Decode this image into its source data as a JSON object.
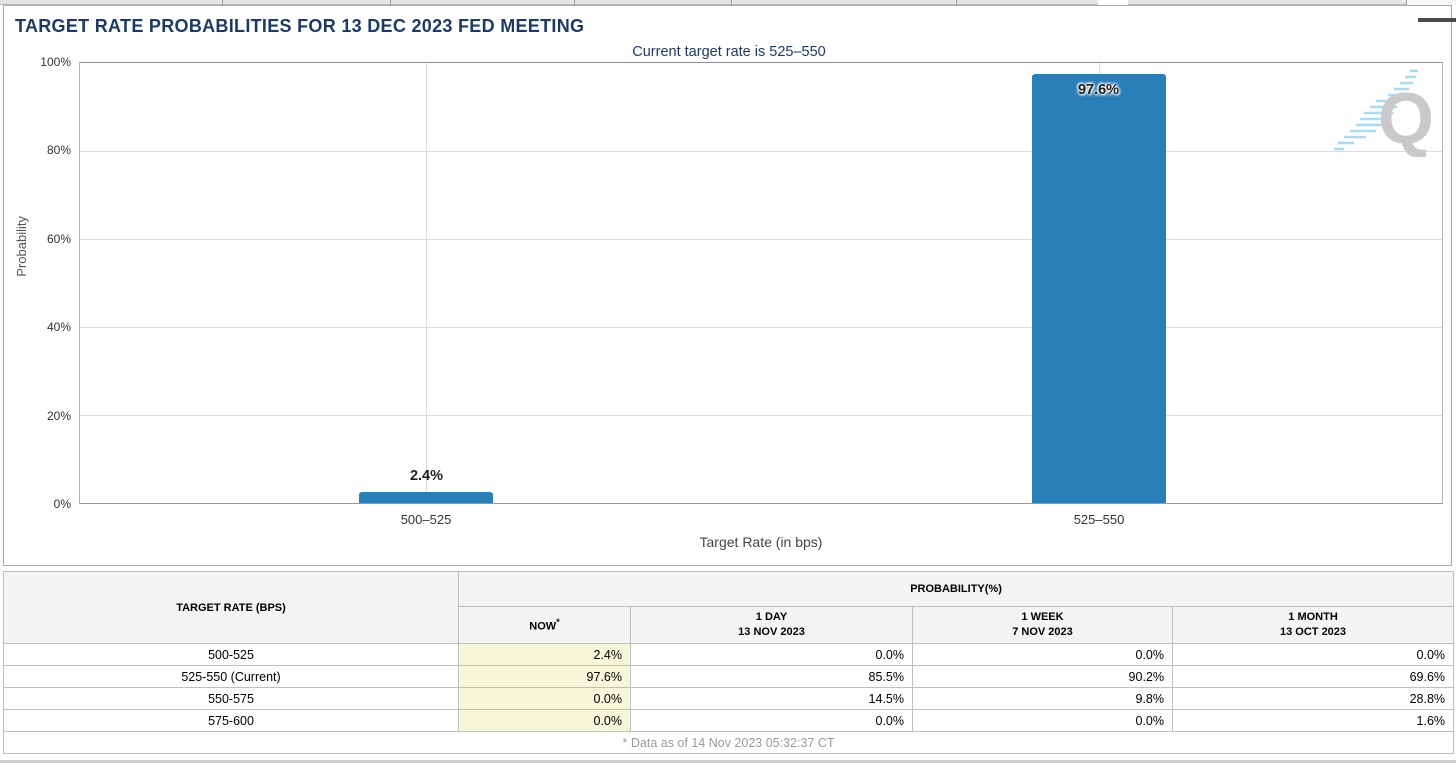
{
  "chart_data": {
    "type": "bar",
    "title": "TARGET RATE PROBABILITIES FOR 13 DEC 2023 FED MEETING",
    "subtitle": "Current target rate is 525–550",
    "categories": [
      "500–525",
      "525–550"
    ],
    "values": [
      2.4,
      97.6
    ],
    "bar_labels": [
      "2.4%",
      "97.6%"
    ],
    "xlabel": "Target Rate (in bps)",
    "ylabel": "Probability",
    "ylim": [
      0,
      100
    ],
    "ytick_labels": [
      "0%",
      "20%",
      "40%",
      "60%",
      "80%",
      "100%"
    ],
    "grid": true,
    "legend": false,
    "bar_color": "#2980b9"
  },
  "panel": {
    "watermark_letter": "Q"
  },
  "table": {
    "corner_header": "TARGET RATE (BPS)",
    "group_header": "PROBABILITY(%)",
    "now_header": {
      "label": "NOW",
      "asterisk": "*"
    },
    "col_headers": [
      {
        "line1": "1 DAY",
        "line2": "13 NOV 2023"
      },
      {
        "line1": "1 WEEK",
        "line2": "7 NOV 2023"
      },
      {
        "line1": "1 MONTH",
        "line2": "13 OCT 2023"
      }
    ],
    "rows": [
      {
        "rate": "500-525",
        "now": "2.4%",
        "day": "0.0%",
        "week": "0.0%",
        "month": "0.0%"
      },
      {
        "rate": "525-550 (Current)",
        "now": "97.6%",
        "day": "85.5%",
        "week": "90.2%",
        "month": "69.6%"
      },
      {
        "rate": "550-575",
        "now": "0.0%",
        "day": "14.5%",
        "week": "9.8%",
        "month": "28.8%"
      },
      {
        "rate": "575-600",
        "now": "0.0%",
        "day": "0.0%",
        "week": "0.0%",
        "month": "1.6%"
      }
    ],
    "footnote": "* Data as of 14 Nov 2023 05:32:37 CT"
  },
  "colors": {
    "bar_blue": "#2980b9",
    "title_navy": "#1b3a6b",
    "now_highlight": "#f7f7d9"
  }
}
